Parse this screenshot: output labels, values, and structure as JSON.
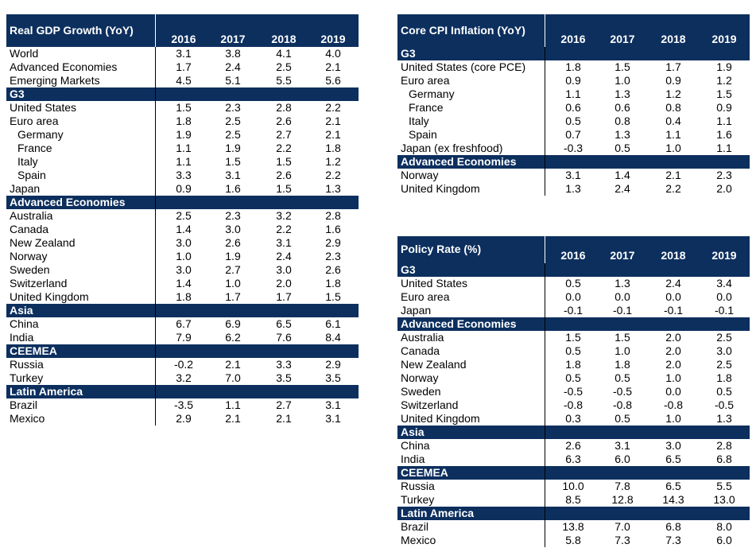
{
  "years": [
    "2016",
    "2017",
    "2018",
    "2019"
  ],
  "tables": [
    {
      "id": "gdp",
      "title": "Real GDP Growth (YoY)",
      "rows": [
        {
          "type": "data",
          "label": "World",
          "values": [
            "3.1",
            "3.8",
            "4.1",
            "4.0"
          ]
        },
        {
          "type": "data",
          "label": "Advanced Economies",
          "values": [
            "1.7",
            "2.4",
            "2.5",
            "2.1"
          ]
        },
        {
          "type": "data",
          "label": "Emerging Markets",
          "values": [
            "4.5",
            "5.1",
            "5.5",
            "5.6"
          ]
        },
        {
          "type": "section",
          "label": "G3"
        },
        {
          "type": "data",
          "label": "United States",
          "values": [
            "1.5",
            "2.3",
            "2.8",
            "2.2"
          ]
        },
        {
          "type": "data",
          "label": "Euro area",
          "values": [
            "1.8",
            "2.5",
            "2.6",
            "2.1"
          ]
        },
        {
          "type": "data",
          "label": "Germany",
          "indent": true,
          "values": [
            "1.9",
            "2.5",
            "2.7",
            "2.1"
          ]
        },
        {
          "type": "data",
          "label": "France",
          "indent": true,
          "values": [
            "1.1",
            "1.9",
            "2.2",
            "1.8"
          ]
        },
        {
          "type": "data",
          "label": "Italy",
          "indent": true,
          "values": [
            "1.1",
            "1.5",
            "1.5",
            "1.2"
          ]
        },
        {
          "type": "data",
          "label": "Spain",
          "indent": true,
          "values": [
            "3.3",
            "3.1",
            "2.6",
            "2.2"
          ]
        },
        {
          "type": "data",
          "label": "Japan",
          "values": [
            "0.9",
            "1.6",
            "1.5",
            "1.3"
          ]
        },
        {
          "type": "section",
          "label": "Advanced Economies"
        },
        {
          "type": "data",
          "label": "Australia",
          "values": [
            "2.5",
            "2.3",
            "3.2",
            "2.8"
          ]
        },
        {
          "type": "data",
          "label": "Canada",
          "values": [
            "1.4",
            "3.0",
            "2.2",
            "1.6"
          ]
        },
        {
          "type": "data",
          "label": "New Zealand",
          "values": [
            "3.0",
            "2.6",
            "3.1",
            "2.9"
          ]
        },
        {
          "type": "data",
          "label": "Norway",
          "values": [
            "1.0",
            "1.9",
            "2.4",
            "2.3"
          ]
        },
        {
          "type": "data",
          "label": "Sweden",
          "values": [
            "3.0",
            "2.7",
            "3.0",
            "2.6"
          ]
        },
        {
          "type": "data",
          "label": "Switzerland",
          "values": [
            "1.4",
            "1.0",
            "2.0",
            "1.8"
          ]
        },
        {
          "type": "data",
          "label": "United Kingdom",
          "values": [
            "1.8",
            "1.7",
            "1.7",
            "1.5"
          ]
        },
        {
          "type": "section",
          "label": "Asia"
        },
        {
          "type": "data",
          "label": "China",
          "values": [
            "6.7",
            "6.9",
            "6.5",
            "6.1"
          ]
        },
        {
          "type": "data",
          "label": "India",
          "values": [
            "7.9",
            "6.2",
            "7.6",
            "8.4"
          ]
        },
        {
          "type": "section",
          "label": "CEEMEA"
        },
        {
          "type": "data",
          "label": "Russia",
          "values": [
            "-0.2",
            "2.1",
            "3.3",
            "2.9"
          ]
        },
        {
          "type": "data",
          "label": "Turkey",
          "values": [
            "3.2",
            "7.0",
            "3.5",
            "3.5"
          ]
        },
        {
          "type": "section",
          "label": "Latin America"
        },
        {
          "type": "data",
          "label": "Brazil",
          "values": [
            "-3.5",
            "1.1",
            "2.7",
            "3.1"
          ]
        },
        {
          "type": "data",
          "label": "Mexico",
          "values": [
            "2.9",
            "2.1",
            "2.1",
            "3.1"
          ]
        }
      ]
    },
    {
      "id": "cpi",
      "title": "Core CPI Inflation (YoY)",
      "rows": [
        {
          "type": "section",
          "label": "G3"
        },
        {
          "type": "data",
          "label": "United States (core PCE)",
          "values": [
            "1.8",
            "1.5",
            "1.7",
            "1.9"
          ]
        },
        {
          "type": "data",
          "label": "Euro area",
          "values": [
            "0.9",
            "1.0",
            "0.9",
            "1.2"
          ]
        },
        {
          "type": "data",
          "label": "Germany",
          "indent": true,
          "values": [
            "1.1",
            "1.3",
            "1.2",
            "1.5"
          ]
        },
        {
          "type": "data",
          "label": "France",
          "indent": true,
          "values": [
            "0.6",
            "0.6",
            "0.8",
            "0.9"
          ]
        },
        {
          "type": "data",
          "label": "Italy",
          "indent": true,
          "values": [
            "0.5",
            "0.8",
            "0.4",
            "1.1"
          ]
        },
        {
          "type": "data",
          "label": "Spain",
          "indent": true,
          "values": [
            "0.7",
            "1.3",
            "1.1",
            "1.6"
          ]
        },
        {
          "type": "data",
          "label": "Japan (ex freshfood)",
          "values": [
            "-0.3",
            "0.5",
            "1.0",
            "1.1"
          ]
        },
        {
          "type": "section",
          "label": "Advanced Economies"
        },
        {
          "type": "data",
          "label": "Norway",
          "values": [
            "3.1",
            "1.4",
            "2.1",
            "2.3"
          ]
        },
        {
          "type": "data",
          "label": "United Kingdom",
          "values": [
            "1.3",
            "2.4",
            "2.2",
            "2.0"
          ]
        }
      ]
    },
    {
      "id": "policy",
      "title": "Policy Rate (%)",
      "rows": [
        {
          "type": "section",
          "label": "G3"
        },
        {
          "type": "data",
          "label": "United States",
          "values": [
            "0.5",
            "1.3",
            "2.4",
            "3.4"
          ]
        },
        {
          "type": "data",
          "label": "Euro area",
          "values": [
            "0.0",
            "0.0",
            "0.0",
            "0.0"
          ]
        },
        {
          "type": "data",
          "label": "Japan",
          "values": [
            "-0.1",
            "-0.1",
            "-0.1",
            "-0.1"
          ]
        },
        {
          "type": "section",
          "label": "Advanced Economies"
        },
        {
          "type": "data",
          "label": "Australia",
          "values": [
            "1.5",
            "1.5",
            "2.0",
            "2.5"
          ]
        },
        {
          "type": "data",
          "label": "Canada",
          "values": [
            "0.5",
            "1.0",
            "2.0",
            "3.0"
          ]
        },
        {
          "type": "data",
          "label": "New Zealand",
          "values": [
            "1.8",
            "1.8",
            "2.0",
            "2.5"
          ]
        },
        {
          "type": "data",
          "label": "Norway",
          "values": [
            "0.5",
            "0.5",
            "1.0",
            "1.8"
          ]
        },
        {
          "type": "data",
          "label": "Sweden",
          "values": [
            "-0.5",
            "-0.5",
            "0.0",
            "0.5"
          ]
        },
        {
          "type": "data",
          "label": "Switzerland",
          "values": [
            "-0.8",
            "-0.8",
            "-0.8",
            "-0.5"
          ]
        },
        {
          "type": "data",
          "label": "United Kingdom",
          "values": [
            "0.3",
            "0.5",
            "1.0",
            "1.3"
          ]
        },
        {
          "type": "section",
          "label": "Asia"
        },
        {
          "type": "data",
          "label": "China",
          "values": [
            "2.6",
            "3.1",
            "3.0",
            "2.8"
          ]
        },
        {
          "type": "data",
          "label": "India",
          "values": [
            "6.3",
            "6.0",
            "6.5",
            "6.8"
          ]
        },
        {
          "type": "section",
          "label": "CEEMEA"
        },
        {
          "type": "data",
          "label": "Russia",
          "values": [
            "10.0",
            "7.8",
            "6.5",
            "5.5"
          ]
        },
        {
          "type": "data",
          "label": "Turkey",
          "values": [
            "8.5",
            "12.8",
            "14.3",
            "13.0"
          ]
        },
        {
          "type": "section",
          "label": "Latin America"
        },
        {
          "type": "data",
          "label": "Brazil",
          "values": [
            "13.8",
            "7.0",
            "6.8",
            "8.0"
          ]
        },
        {
          "type": "data",
          "label": "Mexico",
          "values": [
            "5.8",
            "7.3",
            "7.3",
            "6.0"
          ]
        }
      ]
    }
  ]
}
